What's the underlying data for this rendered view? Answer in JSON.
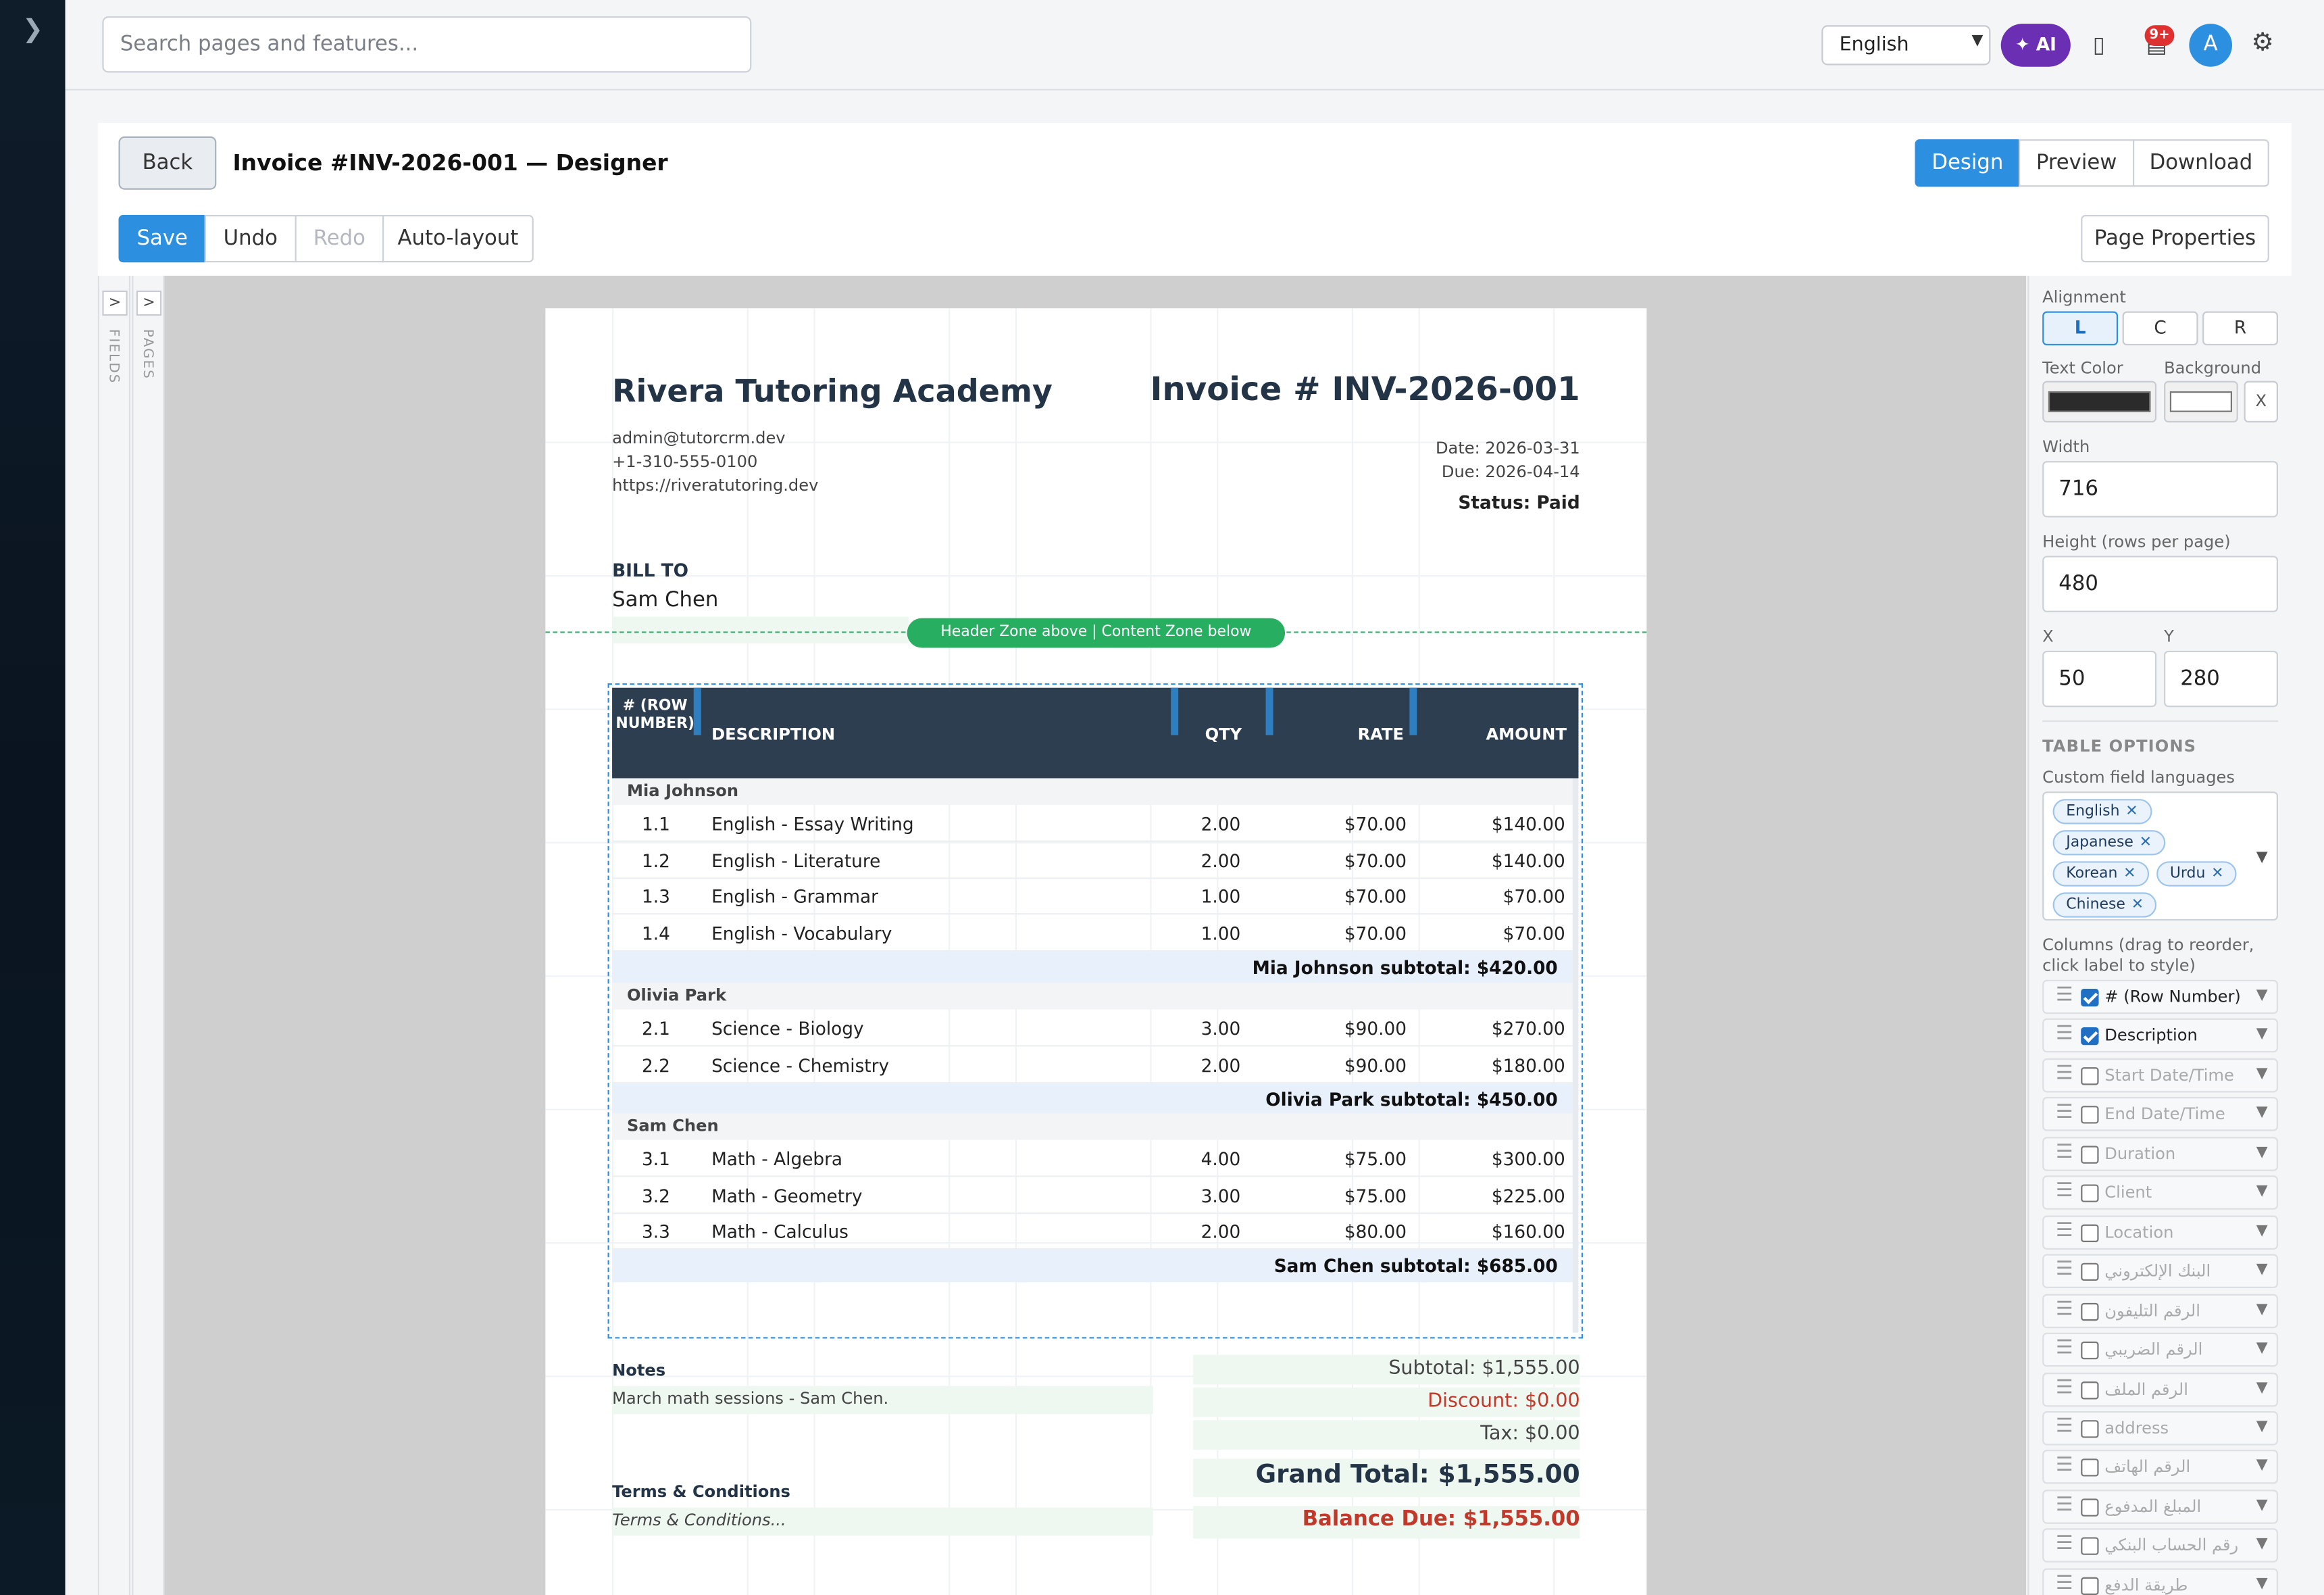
{
  "sidebar": {
    "expand_glyph": "❯"
  },
  "topbar": {
    "search_placeholder": "Search pages and features...",
    "language": "English",
    "ai_label": "AI",
    "notification_count": "9+",
    "avatar_initial": "A"
  },
  "page": {
    "back_label": "Back",
    "title": "Invoice #INV-2026-001 — Designer",
    "views": [
      "Design",
      "Preview",
      "Download"
    ],
    "toolbar": {
      "save": "Save",
      "undo": "Undo",
      "redo": "Redo",
      "autolayout": "Auto-layout"
    },
    "page_properties": "Page Properties"
  },
  "rails": {
    "fields": "FIELDS",
    "pages": "PAGES",
    "toggle": ">"
  },
  "invoice": {
    "company": "Rivera Tutoring Academy",
    "email": "admin@tutorcrm.dev",
    "phone": "+1-310-555-0100",
    "website": "https://riveratutoring.dev",
    "invoice_number": "Invoice # INV-2026-001",
    "date": "Date: 2026-03-31",
    "due": "Due: 2026-04-14",
    "status": "Status: Paid",
    "bill_to_label": "BILL TO",
    "bill_to_name": "Sam Chen",
    "zone_label": "Header Zone above | Content Zone below",
    "columns": {
      "num": "# (ROW NUMBER)",
      "desc": "DESCRIPTION",
      "qty": "QTY",
      "rate": "RATE",
      "amount": "AMOUNT"
    },
    "groups": [
      {
        "name": "Mia Johnson",
        "rows": [
          {
            "n": "1.1",
            "d": "English - Essay Writing",
            "q": "2.00",
            "r": "$70.00",
            "a": "$140.00"
          },
          {
            "n": "1.2",
            "d": "English - Literature",
            "q": "2.00",
            "r": "$70.00",
            "a": "$140.00"
          },
          {
            "n": "1.3",
            "d": "English - Grammar",
            "q": "1.00",
            "r": "$70.00",
            "a": "$70.00"
          },
          {
            "n": "1.4",
            "d": "English - Vocabulary",
            "q": "1.00",
            "r": "$70.00",
            "a": "$70.00"
          }
        ],
        "subtotal": "Mia Johnson subtotal: $420.00"
      },
      {
        "name": "Olivia Park",
        "rows": [
          {
            "n": "2.1",
            "d": "Science - Biology",
            "q": "3.00",
            "r": "$90.00",
            "a": "$270.00"
          },
          {
            "n": "2.2",
            "d": "Science - Chemistry",
            "q": "2.00",
            "r": "$90.00",
            "a": "$180.00"
          }
        ],
        "subtotal": "Olivia Park subtotal: $450.00"
      },
      {
        "name": "Sam Chen",
        "rows": [
          {
            "n": "3.1",
            "d": "Math - Algebra",
            "q": "4.00",
            "r": "$75.00",
            "a": "$300.00"
          },
          {
            "n": "3.2",
            "d": "Math - Geometry",
            "q": "3.00",
            "r": "$75.00",
            "a": "$225.00"
          },
          {
            "n": "3.3",
            "d": "Math - Calculus",
            "q": "2.00",
            "r": "$80.00",
            "a": "$160.00"
          }
        ],
        "subtotal": "Sam Chen subtotal: $685.00"
      }
    ],
    "notes_label": "Notes",
    "notes_text": "March math sessions - Sam Chen.",
    "terms_label": "Terms & Conditions",
    "terms_text": "Terms & Conditions...",
    "subtotal": "Subtotal: $1,555.00",
    "discount": "Discount: $0.00",
    "tax": "Tax: $0.00",
    "grand_total": "Grand Total: $1,555.00",
    "balance_due": "Balance Due: $1,555.00"
  },
  "props": {
    "alignment_label": "Alignment",
    "align_options": [
      "L",
      "C",
      "R"
    ],
    "text_color_label": "Text Color",
    "background_label": "Background",
    "clear_label": "X",
    "text_color": "#2b2b2b",
    "background_color": "#ffffff",
    "width_label": "Width",
    "width": "716",
    "height_label": "Height (rows per page)",
    "height": "480",
    "x_label": "X",
    "x": "50",
    "y_label": "Y",
    "y": "280",
    "table_options": "TABLE OPTIONS",
    "langs_label": "Custom field languages",
    "languages": [
      "English",
      "Japanese",
      "Korean",
      "Urdu",
      "Chinese"
    ],
    "columns_label": "Columns (drag to reorder, click label to style)",
    "columns": [
      {
        "name": "# (Row Number)",
        "checked": true
      },
      {
        "name": "Description",
        "checked": true
      },
      {
        "name": "Start Date/Time",
        "checked": false
      },
      {
        "name": "End Date/Time",
        "checked": false
      },
      {
        "name": "Duration",
        "checked": false
      },
      {
        "name": "Client",
        "checked": false
      },
      {
        "name": "Location",
        "checked": false
      },
      {
        "name": "البنك الإلكتروني",
        "checked": false
      },
      {
        "name": "الرقم التليفون",
        "checked": false
      },
      {
        "name": "الرقم الضريبي",
        "checked": false
      },
      {
        "name": "الرقم الملف",
        "checked": false
      },
      {
        "name": "address",
        "checked": false
      },
      {
        "name": "الرقم الهاتف",
        "checked": false
      },
      {
        "name": "المبلغ المدفوع",
        "checked": false
      },
      {
        "name": "رقم الحساب البنكي",
        "checked": false
      },
      {
        "name": "طريقة الدفع",
        "checked": false
      }
    ]
  }
}
